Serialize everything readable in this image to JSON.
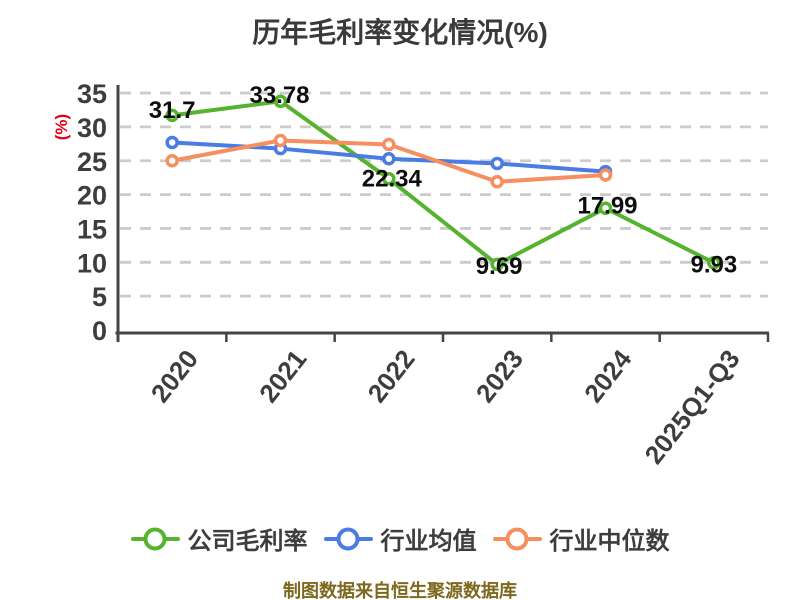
{
  "chart_data": {
    "type": "line",
    "title": "历年毛利率变化情况(%)",
    "ylabel": "(%)",
    "source_note": "制图数据来自恒生聚源数据库",
    "categories": [
      "2020",
      "2021",
      "2022",
      "2023",
      "2024",
      "2025Q1-Q3"
    ],
    "ylim": [
      0,
      35
    ],
    "ytick_step": 5,
    "grid": "horizontal-dashed",
    "legend_position": "bottom",
    "series": [
      {
        "key": "company-gross-margin",
        "name": "公司毛利率",
        "color": "#56B32D",
        "values": [
          31.7,
          33.78,
          22.34,
          9.69,
          17.99,
          9.93
        ],
        "show_labels": true
      },
      {
        "key": "industry-average",
        "name": "行业均值",
        "color": "#4A7CE4",
        "values": [
          27.7,
          26.8,
          25.3,
          24.6,
          23.4
        ],
        "show_labels": false
      },
      {
        "key": "industry-median",
        "name": "行业中位数",
        "color": "#F68F5F",
        "values": [
          25.0,
          28.0,
          27.4,
          21.9,
          22.9
        ],
        "show_labels": false
      }
    ]
  },
  "colors": {
    "background": "#FFFFFF",
    "title": "#3A3A3A",
    "axis_line": "#454545",
    "grid_line": "#CCCCCC",
    "tick_label": "#3D3D3D",
    "y_axis_title_red": "#E60014",
    "data_label": "#0D0D0D",
    "legend_text": "#3D3D3D",
    "source_note": "#7D691E",
    "marker_fill": "#FFFFFF"
  }
}
